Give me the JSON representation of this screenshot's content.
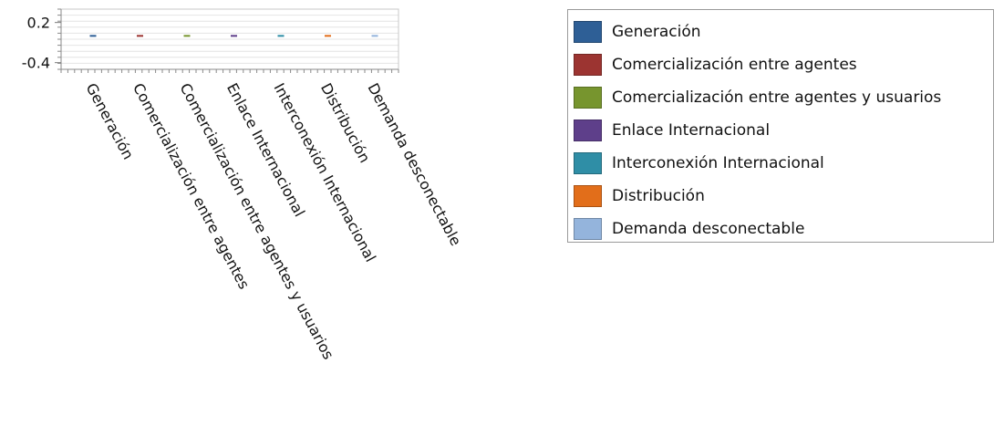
{
  "chart_data": {
    "type": "bar",
    "title": "",
    "xlabel": "",
    "ylabel": "",
    "categories": [
      "Generación",
      "Comercialización entre agentes",
      "Comercialización entre agentes y usuarios",
      "Enlace Internacional",
      "Interconexión Internacional",
      "Distribución",
      "Demanda desconectable"
    ],
    "values": [
      0,
      0,
      0,
      0,
      0,
      0,
      0
    ],
    "series_colors": [
      "#2e5f96",
      "#9c3431",
      "#77952e",
      "#5e3f8a",
      "#2f8ea6",
      "#e26e1a",
      "#94b4dc"
    ],
    "y_ticks": [
      {
        "label": "0.2",
        "value": 0.2
      },
      {
        "label": "-0.4",
        "value": -0.4
      }
    ],
    "ylim": [
      -0.5,
      0.4
    ],
    "grid": true,
    "legend": {
      "position": "right",
      "entries": [
        {
          "label": "Generación",
          "color": "#2e5f96"
        },
        {
          "label": "Comercialización entre agentes",
          "color": "#9c3431"
        },
        {
          "label": "Comercialización entre agentes y usuarios",
          "color": "#77952e"
        },
        {
          "label": "Enlace Internacional",
          "color": "#5e3f8a"
        },
        {
          "label": "Interconexión Internacional",
          "color": "#2f8ea6"
        },
        {
          "label": "Distribución",
          "color": "#e26e1a"
        },
        {
          "label": "Demanda desconectable",
          "color": "#94b4dc"
        }
      ]
    }
  }
}
